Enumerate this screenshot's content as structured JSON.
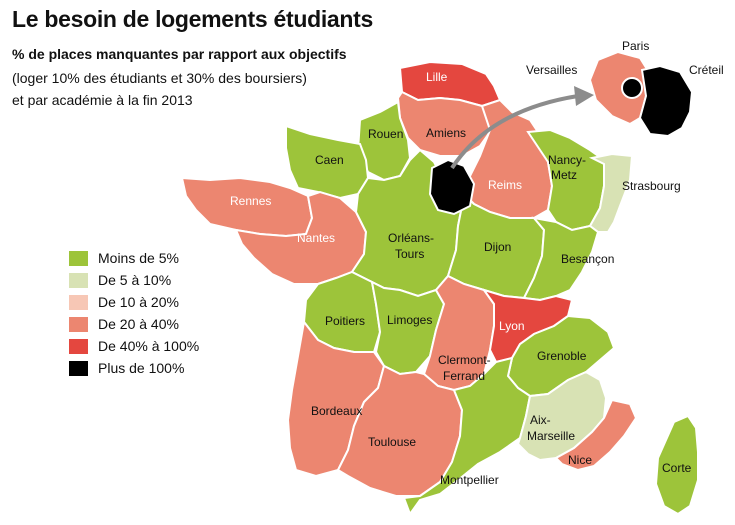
{
  "title": "Le besoin de logements étudiants",
  "subtitle": "% de places manquantes par rapport aux objectifs",
  "description": [
    "(loger 10% des étudiants et 30% des boursiers)",
    "et par académie à la fin 2013"
  ],
  "colors": {
    "lt5": "#9dc43a",
    "5to10": "#d8e2b4",
    "10to20": "#f7c7b5",
    "20to40": "#ec8670",
    "40to100": "#e4473f",
    "gt100": "#000000"
  },
  "legend": [
    {
      "key": "lt5",
      "label": "Moins de 5%"
    },
    {
      "key": "5to10",
      "label": "De 5 à 10%"
    },
    {
      "key": "10to20",
      "label": "De 10 à 20%"
    },
    {
      "key": "20to40",
      "label": "De 20 à 40%"
    },
    {
      "key": "40to100",
      "label": "De 40% à 100%"
    },
    {
      "key": "gt100",
      "label": "Plus de 100%"
    }
  ],
  "regions": [
    {
      "name": "Lille",
      "category": "40to100"
    },
    {
      "name": "Amiens",
      "category": "20to40"
    },
    {
      "name": "Rouen",
      "category": "lt5"
    },
    {
      "name": "Caen",
      "category": "lt5"
    },
    {
      "name": "Reims",
      "category": "20to40"
    },
    {
      "name": "Nancy-Metz",
      "category": "lt5"
    },
    {
      "name": "Strasbourg",
      "category": "5to10"
    },
    {
      "name": "Rennes",
      "category": "20to40"
    },
    {
      "name": "Nantes",
      "category": "20to40"
    },
    {
      "name": "Orléans-Tours",
      "category": "lt5"
    },
    {
      "name": "Dijon",
      "category": "lt5"
    },
    {
      "name": "Besançon",
      "category": "lt5"
    },
    {
      "name": "Poitiers",
      "category": "lt5"
    },
    {
      "name": "Limoges",
      "category": "lt5"
    },
    {
      "name": "Clermont-Ferrand",
      "category": "20to40"
    },
    {
      "name": "Lyon",
      "category": "40to100"
    },
    {
      "name": "Grenoble",
      "category": "lt5"
    },
    {
      "name": "Bordeaux",
      "category": "20to40"
    },
    {
      "name": "Toulouse",
      "category": "20to40"
    },
    {
      "name": "Montpellier",
      "category": "lt5"
    },
    {
      "name": "Aix-Marseille",
      "category": "5to10"
    },
    {
      "name": "Nice",
      "category": "20to40"
    },
    {
      "name": "Corte",
      "category": "lt5"
    },
    {
      "name": "Paris",
      "category": "gt100"
    },
    {
      "name": "Créteil",
      "category": "gt100"
    },
    {
      "name": "Versailles",
      "category": "20to40"
    }
  ],
  "labels": {
    "lille": "Lille",
    "amiens": "Amiens",
    "rouen": "Rouen",
    "caen": "Caen",
    "reims": "Reims",
    "nancy_1": "Nancy-",
    "nancy_2": "Metz",
    "strasbourg": "Strasbourg",
    "rennes": "Rennes",
    "nantes": "Nantes",
    "orleans_1": "Orléans-",
    "orleans_2": "Tours",
    "dijon": "Dijon",
    "besancon": "Besançon",
    "poitiers": "Poitiers",
    "limoges": "Limoges",
    "clermont_1": "Clermont-",
    "clermont_2": "Ferrand",
    "lyon": "Lyon",
    "grenoble": "Grenoble",
    "bordeaux": "Bordeaux",
    "toulouse": "Toulouse",
    "montpellier": "Montpellier",
    "aix_1": "Aix-",
    "aix_2": "Marseille",
    "nice": "Nice",
    "corte": "Corte",
    "paris": "Paris",
    "versailles": "Versailles",
    "creteil": "Créteil"
  }
}
